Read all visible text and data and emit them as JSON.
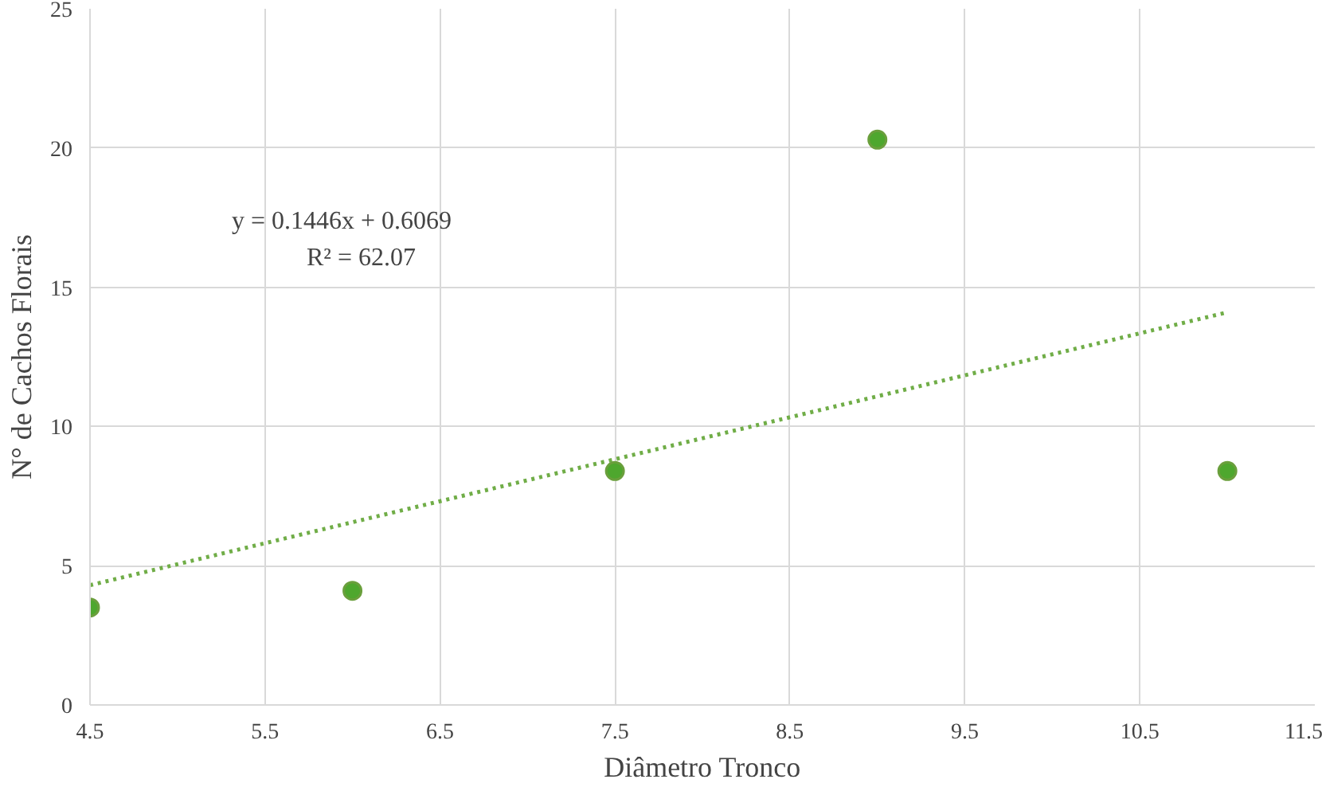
{
  "chart_data": {
    "type": "scatter",
    "xlabel": "Diâmetro Tronco",
    "ylabel": "N° de Cachos Florais",
    "series": [
      {
        "color": "#4ea72e",
        "x": [
          4.5,
          6.0,
          7.5,
          9.0,
          11.0
        ],
        "values": [
          3.5,
          4.1,
          8.4,
          20.3,
          8.4
        ],
        "marker": "circle"
      },
      {
        "type": "line",
        "color": "#70ad47",
        "x": [
          4.5,
          11.0
        ],
        "values": [
          4.3,
          14.1
        ],
        "line_style": "dotted"
      }
    ],
    "grid": true,
    "xlim": [
      4.5,
      11.5
    ],
    "ylim": [
      0,
      25
    ],
    "xticks": [
      4.5,
      5.5,
      6.5,
      7.5,
      8.5,
      9.5,
      10.5,
      11.5
    ],
    "yticks": [
      0,
      5,
      10,
      15,
      20,
      25
    ],
    "annotations": [
      "y = 0.1446x + 0.6069",
      "R² = 62.07"
    ]
  }
}
